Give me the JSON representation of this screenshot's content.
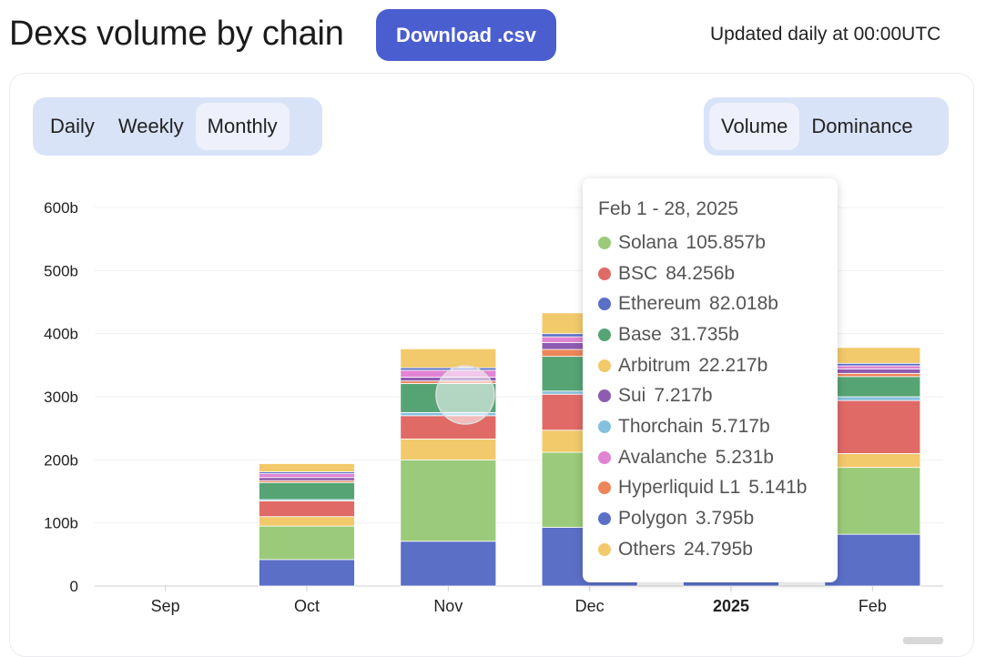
{
  "header": {
    "title": "Dexs volume by chain",
    "download_label": "Download .csv",
    "updated_text": "Updated daily at 00:00UTC"
  },
  "period_toggle": {
    "options": [
      "Daily",
      "Weekly",
      "Monthly"
    ],
    "active": "Monthly"
  },
  "metric_toggle": {
    "options": [
      "Volume",
      "Dominance"
    ],
    "active": "Volume"
  },
  "tooltip": {
    "date": "Feb 1 - 28, 2025",
    "items": [
      {
        "name": "Solana",
        "value": "105.857b",
        "color": "#9bcb7a"
      },
      {
        "name": "BSC",
        "value": "84.256b",
        "color": "#e06a66"
      },
      {
        "name": "Ethereum",
        "value": "82.018b",
        "color": "#5b6fc7"
      },
      {
        "name": "Base",
        "value": "31.735b",
        "color": "#56a474"
      },
      {
        "name": "Arbitrum",
        "value": "22.217b",
        "color": "#f2c96b"
      },
      {
        "name": "Sui",
        "value": "7.217b",
        "color": "#8e5bb2"
      },
      {
        "name": "Thorchain",
        "value": "5.717b",
        "color": "#86c0df"
      },
      {
        "name": "Avalanche",
        "value": "5.231b",
        "color": "#e184d3"
      },
      {
        "name": "Hyperliquid L1",
        "value": "5.141b",
        "color": "#ec8558"
      },
      {
        "name": "Polygon",
        "value": "3.795b",
        "color": "#5b6fc7"
      },
      {
        "name": "Others",
        "value": "24.795b",
        "color": "#f2c96b"
      }
    ]
  },
  "chart_data": {
    "type": "bar",
    "stacked": true,
    "categories": [
      "Sep",
      "Oct",
      "Nov",
      "Dec",
      "2025",
      "Feb"
    ],
    "category_bold": [
      false,
      false,
      false,
      false,
      true,
      false
    ],
    "ylim": [
      0,
      600
    ],
    "yticks": [
      0,
      100,
      200,
      300,
      400,
      500,
      600
    ],
    "ytick_labels": [
      "0",
      "100b",
      "200b",
      "300b",
      "400b",
      "500b",
      "600b"
    ],
    "grid": true,
    "series": [
      {
        "name": "Ethereum",
        "color": "#5b6fc7",
        "values": [
          0,
          42,
          71,
          93,
          92,
          82
        ]
      },
      {
        "name": "Solana",
        "color": "#9bcb7a",
        "values": [
          0,
          53,
          129,
          119,
          120,
          106
        ]
      },
      {
        "name": "Arbitrum",
        "color": "#f2c96b",
        "values": [
          0,
          15,
          33,
          35,
          24,
          22
        ]
      },
      {
        "name": "BSC",
        "color": "#e06a66",
        "values": [
          0,
          25,
          37,
          57,
          60,
          84
        ]
      },
      {
        "name": "Thorchain",
        "color": "#86c0df",
        "values": [
          0,
          2,
          5,
          5,
          6,
          6
        ]
      },
      {
        "name": "Base",
        "color": "#56a474",
        "values": [
          0,
          27,
          46,
          55,
          40,
          32
        ]
      },
      {
        "name": "Hyperliquid L1",
        "color": "#ec8558",
        "values": [
          0,
          3,
          4,
          11,
          6,
          5
        ]
      },
      {
        "name": "Sui",
        "color": "#8e5bb2",
        "values": [
          0,
          5,
          6,
          11,
          8,
          7
        ]
      },
      {
        "name": "Avalanche",
        "color": "#e184d3",
        "values": [
          0,
          6,
          11,
          9,
          7,
          5
        ]
      },
      {
        "name": "Polygon",
        "color": "#5b6fc7",
        "values": [
          0,
          3,
          4,
          5,
          4,
          4
        ]
      },
      {
        "name": "Others",
        "color": "#f2c96b",
        "values": [
          0,
          13,
          30,
          33,
          20,
          25
        ]
      }
    ]
  }
}
